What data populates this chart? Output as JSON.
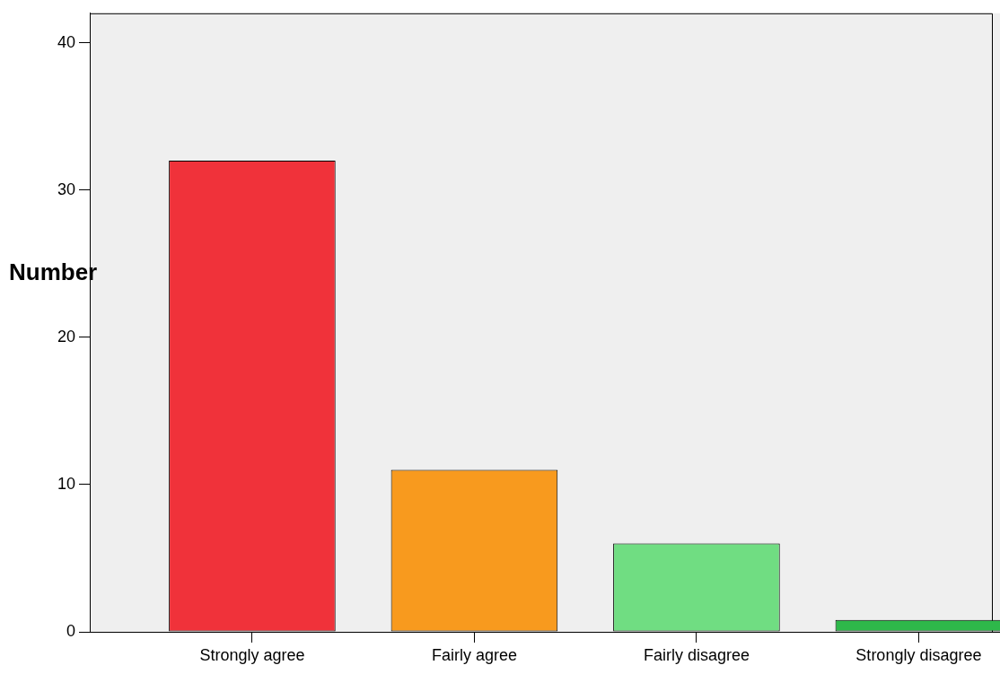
{
  "chart_data": {
    "type": "bar",
    "ylabel": "Number",
    "categories": [
      "Strongly agree",
      "Fairly agree",
      "Fairly disagree",
      "Strongly disagree"
    ],
    "values": [
      32,
      11,
      6,
      0.8
    ],
    "colors": [
      "#f0323a",
      "#f89a1e",
      "#70dd82",
      "#2eb84a"
    ],
    "ylim": [
      0,
      42
    ],
    "yticks": [
      0,
      10,
      20,
      30,
      40
    ],
    "grid": false,
    "legend": false
  }
}
